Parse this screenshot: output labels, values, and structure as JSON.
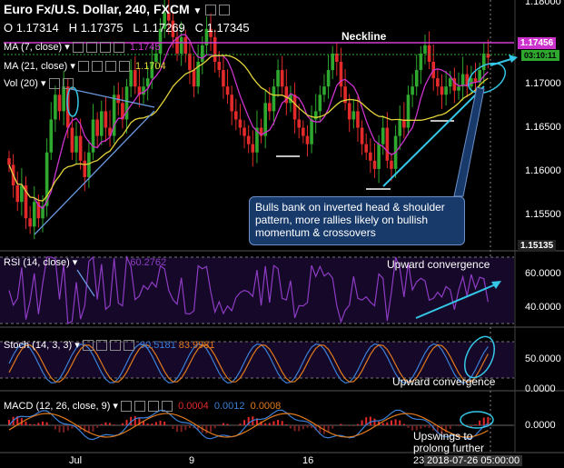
{
  "header": {
    "title": "Euro Fx/U.S. Dollar, 240, FXCM",
    "open": "O 1.17314",
    "high": "H 1.17375",
    "low": "L 1.17269",
    "close": "C 1.17345"
  },
  "indicators": {
    "ma7": "MA (7, close)",
    "ma7_value": "1.1745",
    "ma21": "MA (21, close)",
    "ma21_value": "1.1704",
    "vol": "Vol (20)",
    "rsi": "RSI (14, close)",
    "rsi_value": "60.2762",
    "stoch": "Stoch (14, 3, 3)",
    "stoch_k": "90.5181",
    "stoch_d": "83.9981",
    "macd": "MACD (12, 26, close, 9)",
    "macd_hist": "0.0004",
    "macd_line": "0.0012",
    "macd_signal": "0.0008"
  },
  "price_tags": {
    "current": "1.17456",
    "countdown": "03:10:11",
    "bottom_edge": "1.15135"
  },
  "annotations": {
    "neckline": "Neckline",
    "callout": "Bulls bank on inverted head & shoulder pattern, more rallies likely on bullish momentum & crossovers",
    "rsi_note": "Upward convergence",
    "stoch_note": "Upward convergence",
    "macd_note_1": "Upswings to",
    "macd_note_2": "prolong further"
  },
  "axes": {
    "price_ticks": [
      "1.18000",
      "1.17000",
      "1.16500",
      "1.16000",
      "1.15500"
    ],
    "rsi_ticks": [
      "60.0000",
      "40.0000"
    ],
    "stoch_ticks": [
      "50.0000",
      "0.0000"
    ],
    "macd_ticks": [
      "0.0000"
    ],
    "x_ticks": [
      "Jul",
      "9",
      "16",
      "23"
    ],
    "x_current": "2018-07-26 05:00:00"
  },
  "colors": {
    "up": "#2ea82e",
    "down": "#e22a2a",
    "ma7": "#cc33cc",
    "ma21": "#e3d33a",
    "neckline": "#d13fd1",
    "arrow": "#34c7e8",
    "rsi": "#8e3cc4",
    "stoch_k": "#3b7fd6",
    "stoch_d": "#e07a1c"
  },
  "chart_data": {
    "type": "candlestick",
    "title": "Euro Fx/U.S. Dollar, 240, FXCM",
    "ylim": [
      1.1505,
      1.1805
    ],
    "close": [
      1.1605,
      1.158,
      1.156,
      1.158,
      1.154,
      1.153,
      1.156,
      1.154,
      1.1555,
      1.162,
      1.166,
      1.169,
      1.167,
      1.17,
      1.165,
      1.162,
      1.164,
      1.161,
      1.159,
      1.162,
      1.166,
      1.164,
      1.167,
      1.165,
      1.164,
      1.169,
      1.168,
      1.166,
      1.17,
      1.172,
      1.17,
      1.169,
      1.17,
      1.171,
      1.173,
      1.174,
      1.177,
      1.179,
      1.178,
      1.176,
      1.174,
      1.176,
      1.174,
      1.172,
      1.17,
      1.173,
      1.175,
      1.177,
      1.176,
      1.173,
      1.172,
      1.17,
      1.169,
      1.167,
      1.166,
      1.165,
      1.164,
      1.163,
      1.162,
      1.165,
      1.164,
      1.168,
      1.167,
      1.17,
      1.172,
      1.17,
      1.168,
      1.169,
      1.166,
      1.165,
      1.164,
      1.163,
      1.166,
      1.167,
      1.169,
      1.17,
      1.172,
      1.174,
      1.173,
      1.17,
      1.168,
      1.166,
      1.167,
      1.165,
      1.163,
      1.162,
      1.161,
      1.16,
      1.163,
      1.165,
      1.161,
      1.16,
      1.164,
      1.166,
      1.165,
      1.169,
      1.17,
      1.172,
      1.174,
      1.175,
      1.173,
      1.171,
      1.17,
      1.169,
      1.17,
      1.171,
      1.1695,
      1.17,
      1.1715,
      1.17,
      1.171,
      1.1705,
      1.172,
      1.174,
      1.1735
    ]
  }
}
